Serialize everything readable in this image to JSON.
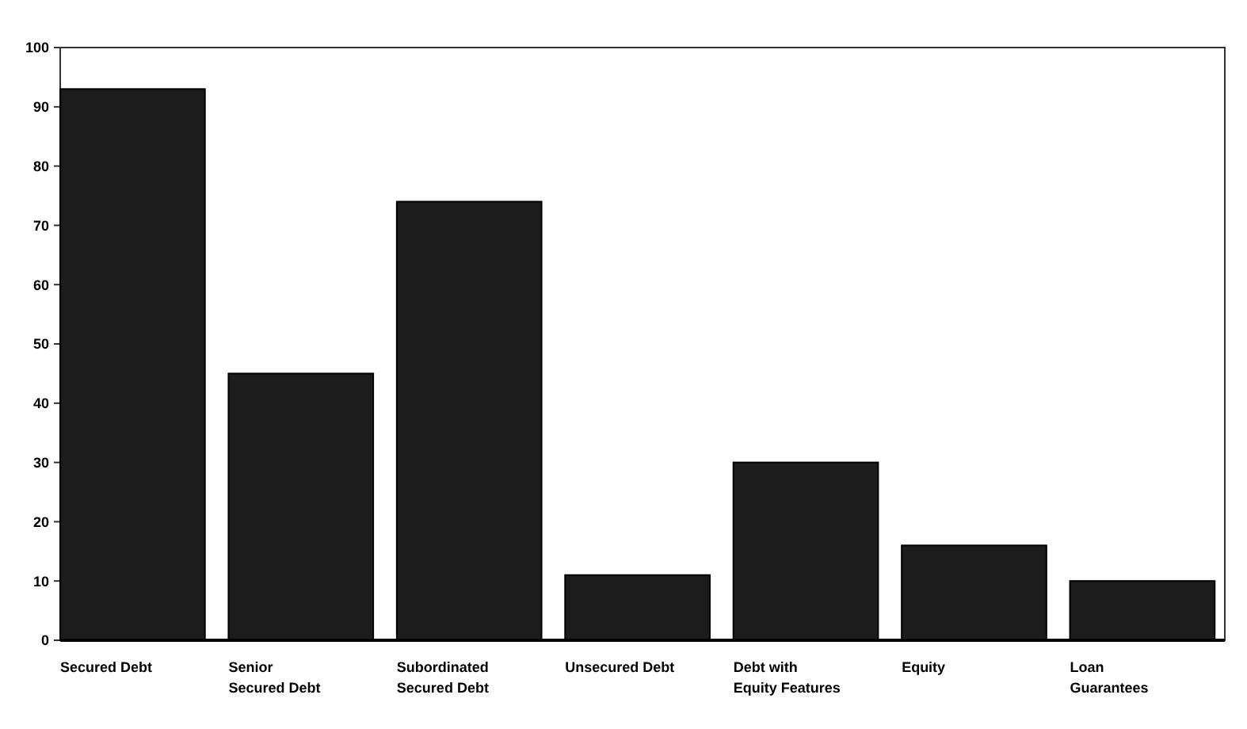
{
  "chart_data": {
    "type": "bar",
    "categories": [
      "Secured Debt",
      "Senior\nSecured Debt",
      "Subordinated\nSecured Debt",
      "Unsecured Debt",
      "Debt with\nEquity Features",
      "Equity",
      "Loan\nGuarantees"
    ],
    "values": [
      93,
      45,
      74,
      11,
      30,
      16,
      10
    ],
    "color": "#1c1c1c",
    "ylim": [
      0,
      100
    ],
    "yticks": [
      0,
      10,
      20,
      30,
      40,
      50,
      60,
      70,
      80,
      90,
      100
    ],
    "grid": false
  }
}
